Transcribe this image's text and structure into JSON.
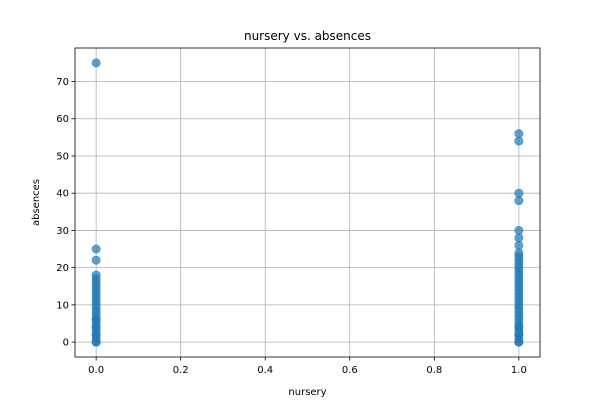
{
  "chart_data": {
    "type": "scatter",
    "title": "nursery vs. absences",
    "xlabel": "nursery",
    "ylabel": "absences",
    "xlim": [
      -0.05,
      1.05
    ],
    "ylim": [
      -4,
      79
    ],
    "xticks": [
      0.0,
      0.2,
      0.4,
      0.6,
      0.8,
      1.0
    ],
    "xtick_labels": [
      "0.0",
      "0.2",
      "0.4",
      "0.6",
      "0.8",
      "1.0"
    ],
    "yticks": [
      0,
      10,
      20,
      30,
      40,
      50,
      60,
      70
    ],
    "ytick_labels": [
      "0",
      "10",
      "20",
      "30",
      "40",
      "50",
      "60",
      "70"
    ],
    "grid": true,
    "point_color": "#1f77b4",
    "point_alpha": 0.7,
    "series": [
      {
        "x": [
          0,
          0,
          0,
          0,
          0,
          0,
          0,
          0,
          0,
          0,
          0,
          0,
          0,
          0,
          0,
          0,
          0,
          0,
          0,
          0,
          0,
          0,
          0,
          0,
          0,
          0
        ],
        "y": [
          0,
          1,
          2,
          3,
          4,
          5,
          6,
          7,
          8,
          9,
          10,
          11,
          12,
          13,
          14,
          15,
          16,
          17,
          18,
          22,
          25,
          75,
          0,
          2,
          4,
          6
        ]
      },
      {
        "x": [
          1,
          1,
          1,
          1,
          1,
          1,
          1,
          1,
          1,
          1,
          1,
          1,
          1,
          1,
          1,
          1,
          1,
          1,
          1,
          1,
          1,
          1,
          1,
          1,
          1,
          1,
          1,
          1,
          1,
          1,
          1,
          1,
          1,
          1,
          1
        ],
        "y": [
          0,
          1,
          2,
          3,
          4,
          5,
          6,
          7,
          8,
          9,
          10,
          11,
          12,
          13,
          14,
          15,
          16,
          17,
          18,
          19,
          20,
          21,
          22,
          23,
          24,
          26,
          28,
          30,
          38,
          40,
          54,
          56,
          0,
          2,
          4
        ]
      }
    ]
  }
}
